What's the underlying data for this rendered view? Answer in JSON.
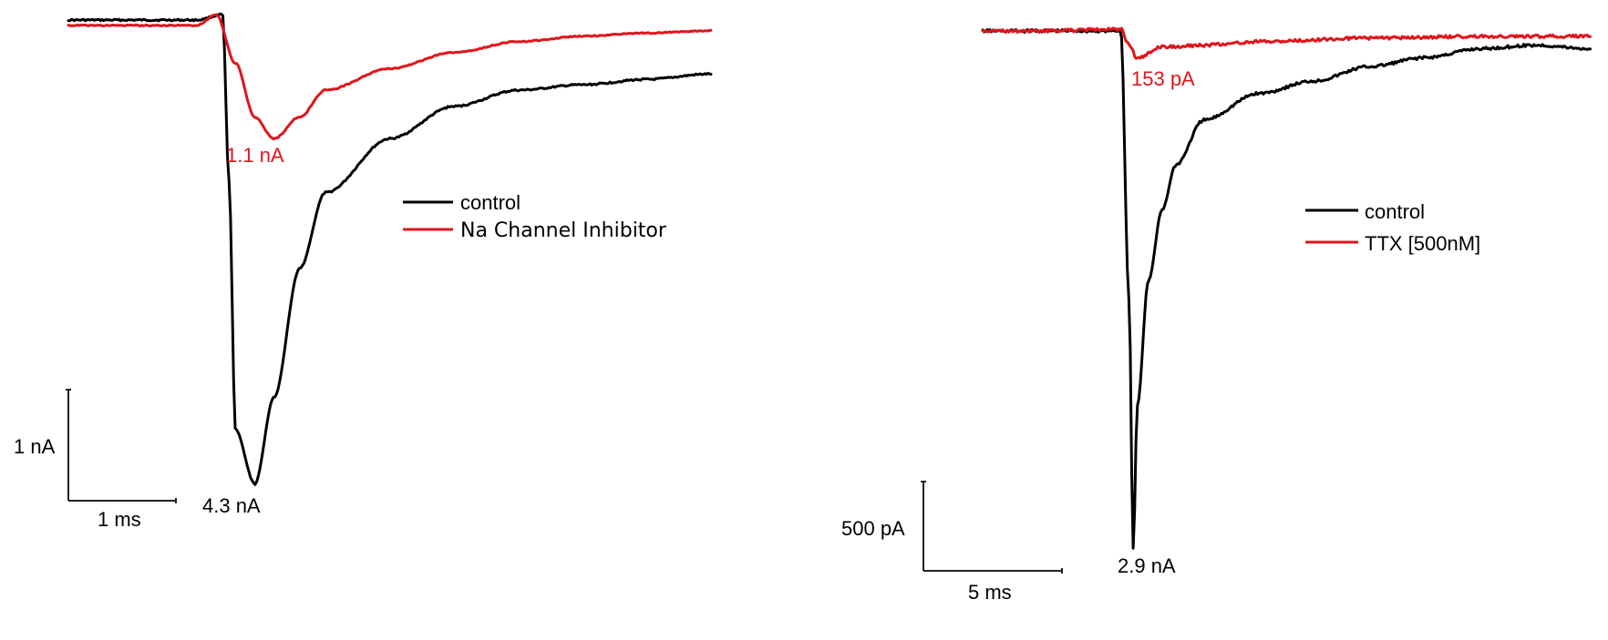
{
  "chart_data": [
    {
      "type": "line",
      "title": "",
      "xlabel": "",
      "ylabel": "",
      "grid": false,
      "legend_position": "right-middle",
      "series": [
        {
          "name": "control",
          "color": "#000000",
          "x_ms": [
            0,
            0.5,
            1.0,
            1.2,
            1.25,
            1.3,
            1.45,
            1.6,
            1.8,
            2.0,
            2.5,
            3.0,
            3.5,
            4.0,
            4.5,
            5.0
          ],
          "y_nA": [
            0,
            0,
            0,
            0.05,
            -1.5,
            -3.8,
            -4.3,
            -3.5,
            -2.3,
            -1.6,
            -1.1,
            -0.8,
            -0.65,
            -0.6,
            -0.55,
            -0.5
          ]
        },
        {
          "name": "Na Channel Inhibitor",
          "color": "#e0151b",
          "x_ms": [
            0,
            0.5,
            1.0,
            1.15,
            1.3,
            1.45,
            1.6,
            1.8,
            2.0,
            2.5,
            3.0,
            3.5,
            4.0,
            4.5,
            5.0
          ],
          "y_nA": [
            -0.05,
            -0.05,
            -0.05,
            0.05,
            -0.4,
            -0.9,
            -1.1,
            -0.9,
            -0.65,
            -0.45,
            -0.3,
            -0.2,
            -0.15,
            -0.12,
            -0.1
          ]
        }
      ],
      "annotations": [
        {
          "text": "1.1 nA",
          "color": "#e0151b",
          "target": "Na Channel Inhibitor peak"
        },
        {
          "text": "4.3 nA",
          "color": "#000000",
          "target": "control peak"
        }
      ],
      "scale_bar": {
        "y_label": "1 nA",
        "x_label": "1 ms"
      }
    },
    {
      "type": "line",
      "title": "",
      "xlabel": "",
      "ylabel": "",
      "grid": false,
      "legend_position": "right-middle",
      "series": [
        {
          "name": "control",
          "color": "#000000",
          "x_ms": [
            0,
            2,
            5,
            5.3,
            5.45,
            5.6,
            6,
            6.5,
            7,
            8,
            10,
            12,
            14,
            16,
            18,
            20,
            22
          ],
          "y_nA": [
            0,
            0,
            0,
            -1.5,
            -2.9,
            -2.1,
            -1.4,
            -1.0,
            -0.75,
            -0.5,
            -0.35,
            -0.28,
            -0.2,
            -0.15,
            -0.1,
            -0.08,
            -0.1
          ]
        },
        {
          "name": "TTX [500nM]",
          "color": "#e0151b",
          "x_ms": [
            0,
            2,
            5,
            5.3,
            5.6,
            6.5,
            8,
            10,
            14,
            18,
            22
          ],
          "y_nA": [
            0,
            0,
            0.01,
            -0.08,
            -0.153,
            -0.09,
            -0.08,
            -0.06,
            -0.04,
            -0.03,
            -0.03
          ]
        }
      ],
      "annotations": [
        {
          "text": "153 pA",
          "color": "#e0151b",
          "target": "TTX [500nM] peak"
        },
        {
          "text": "2.9 nA",
          "color": "#000000",
          "target": "control peak"
        }
      ],
      "scale_bar": {
        "y_label": "500 pA",
        "x_label": "5 ms"
      }
    }
  ],
  "left": {
    "legend": {
      "items": [
        {
          "label": "control",
          "color": "#000000"
        },
        {
          "label": "Na Channel Inhibitor",
          "color": "#e0151b"
        }
      ]
    },
    "annotation_red": "1.1 nA",
    "annotation_black": "4.3 nA",
    "scale_y": "1 nA",
    "scale_x": "1 ms"
  },
  "right": {
    "legend": {
      "items": [
        {
          "label": "control",
          "color": "#000000"
        },
        {
          "label": "TTX [500nM]",
          "color": "#e0151b"
        }
      ]
    },
    "annotation_red": "153 pA",
    "annotation_black": "2.9 nA",
    "scale_y": "500 pA",
    "scale_x": "5 ms"
  },
  "colors": {
    "control": "#000000",
    "treatment": "#e0151b"
  }
}
